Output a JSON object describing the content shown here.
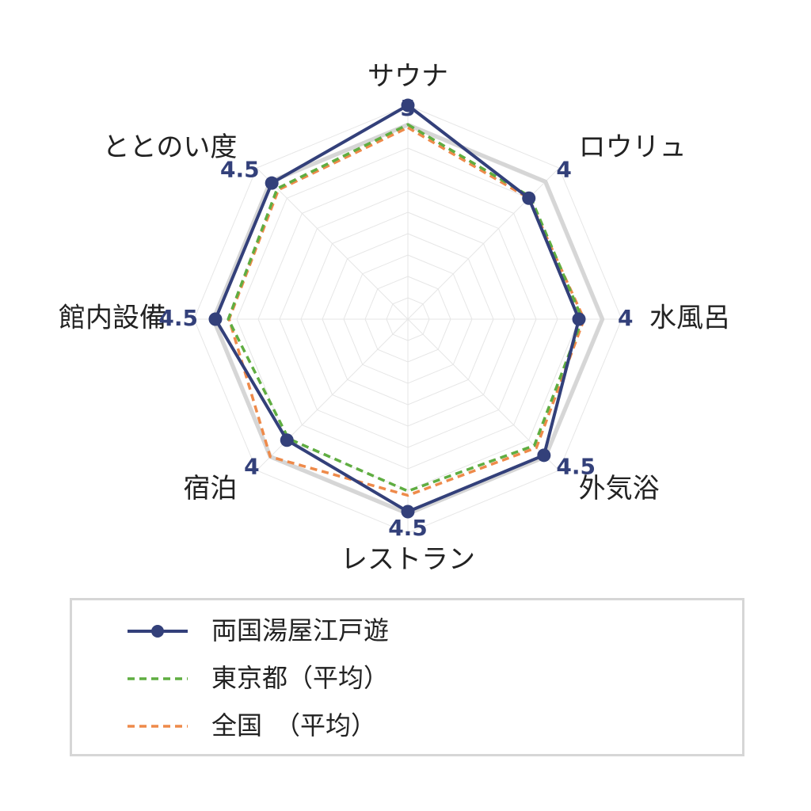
{
  "chart_data": {
    "type": "radar",
    "categories": [
      "サウナ",
      "ロウリュ",
      "水風呂",
      "外気浴",
      "レストラン",
      "宿泊",
      "館内設備",
      "ととのい度"
    ],
    "range": [
      0,
      5
    ],
    "series": [
      {
        "name": "両国湯屋江戸遊",
        "values": [
          5,
          4,
          4,
          4.5,
          4.5,
          4,
          4.5,
          4.5
        ],
        "value_labels": [
          "5",
          "4",
          "4",
          "4.5",
          "4.5",
          "4",
          "4.5",
          "4.5"
        ],
        "color": "#33407a",
        "style": "solid",
        "markers": true
      },
      {
        "name": "東京都（平均）",
        "values": [
          4.55,
          4.05,
          4.08,
          4.18,
          4.02,
          3.95,
          4.2,
          4.32
        ],
        "color": "#5fad41",
        "style": "dashed"
      },
      {
        "name": "全国　（平均）",
        "values": [
          4.48,
          4.0,
          4.12,
          4.25,
          4.12,
          4.55,
          4.18,
          4.28
        ],
        "color": "#ee8a4a",
        "style": "dashed"
      }
    ],
    "outer_ring_color": "#d6d6d6",
    "grid": true,
    "legend": "bottom"
  }
}
